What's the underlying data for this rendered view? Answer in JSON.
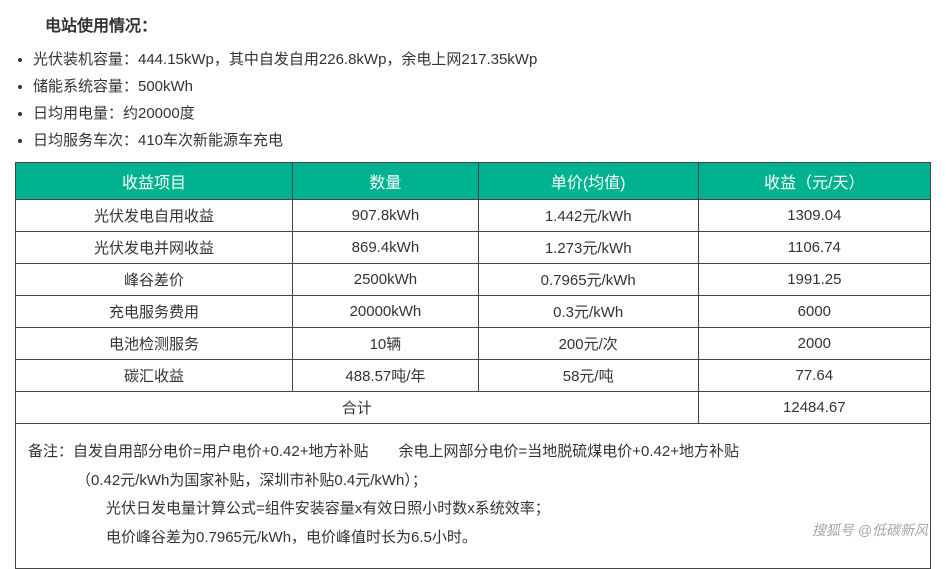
{
  "title": "电站使用情况：",
  "info": {
    "item1": "光伏装机容量：444.15kWp，其中自发自用226.8kWp，余电上网217.35kWp",
    "item2": "储能系统容量：500kWh",
    "item3": "日均用电量：约20000度",
    "item4": "日均服务车次：410车次新能源车充电"
  },
  "table": {
    "headers": {
      "col1": "收益项目",
      "col2": "数量",
      "col3": "单价(均值)",
      "col4": "收益（元/天）"
    },
    "rows": [
      {
        "c1": "光伏发电自用收益",
        "c2": "907.8kWh",
        "c3": "1.442元/kWh",
        "c4": "1309.04"
      },
      {
        "c1": "光伏发电并网收益",
        "c2": "869.4kWh",
        "c3": "1.273元/kWh",
        "c4": "1106.74"
      },
      {
        "c1": "峰谷差价",
        "c2": "2500kWh",
        "c3": "0.7965元/kWh",
        "c4": "1991.25"
      },
      {
        "c1": "充电服务费用",
        "c2": "20000kWh",
        "c3": "0.3元/kWh",
        "c4": "6000"
      },
      {
        "c1": "电池检测服务",
        "c2": "10辆",
        "c3": "200元/次",
        "c4": "2000"
      },
      {
        "c1": "碳汇收益",
        "c2": "488.57吨/年",
        "c3": "58元/吨",
        "c4": "77.64"
      }
    ],
    "total": {
      "label": "合计",
      "value": "12484.67"
    }
  },
  "notes": {
    "line1": "备注：自发自用部分电价=用户电价+0.42+地方补贴  余电上网部分电价=当地脱硫煤电价+0.42+地方补贴",
    "line2": "（0.42元/kWh为国家补贴，深圳市补贴0.4元/kWh）；",
    "line3": "光伏日发电量计算公式=组件安装容量x有效日照小时数x系统效率；",
    "line4": "电价峰谷差为0.7965元/kWh，电价峰值时长为6.5小时。"
  },
  "watermark": "搜狐号 @低碳新风",
  "colors": {
    "header_bg": "#00b28f",
    "header_text": "#ffffff",
    "border": "#444444",
    "text": "#333333"
  }
}
